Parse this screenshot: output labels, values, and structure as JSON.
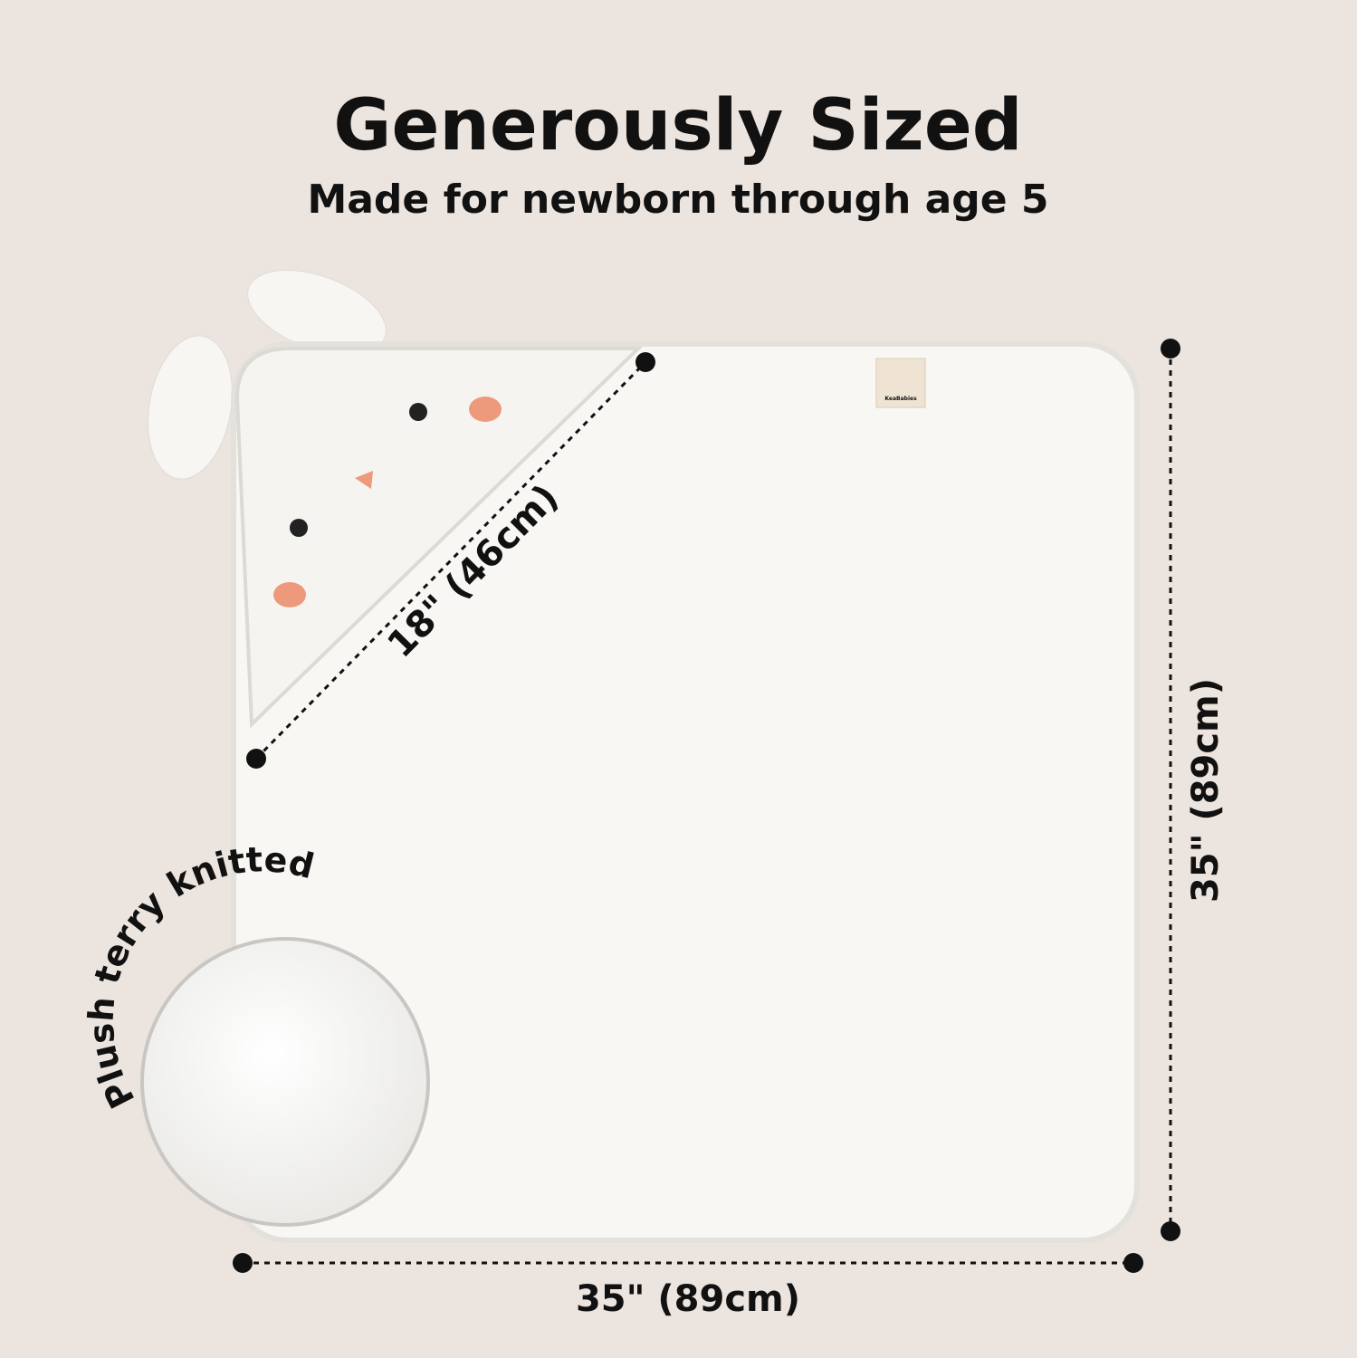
{
  "header": {
    "title": "Generously Sized",
    "subtitle": "Made for newborn through age 5"
  },
  "product": {
    "brand_tag": "KeaBabies"
  },
  "dimensions": {
    "hood": "18\" (46cm)",
    "height": "35\" (89cm)",
    "width": "35\" (89cm)"
  },
  "callout": {
    "label": "Plush terry knitted"
  }
}
